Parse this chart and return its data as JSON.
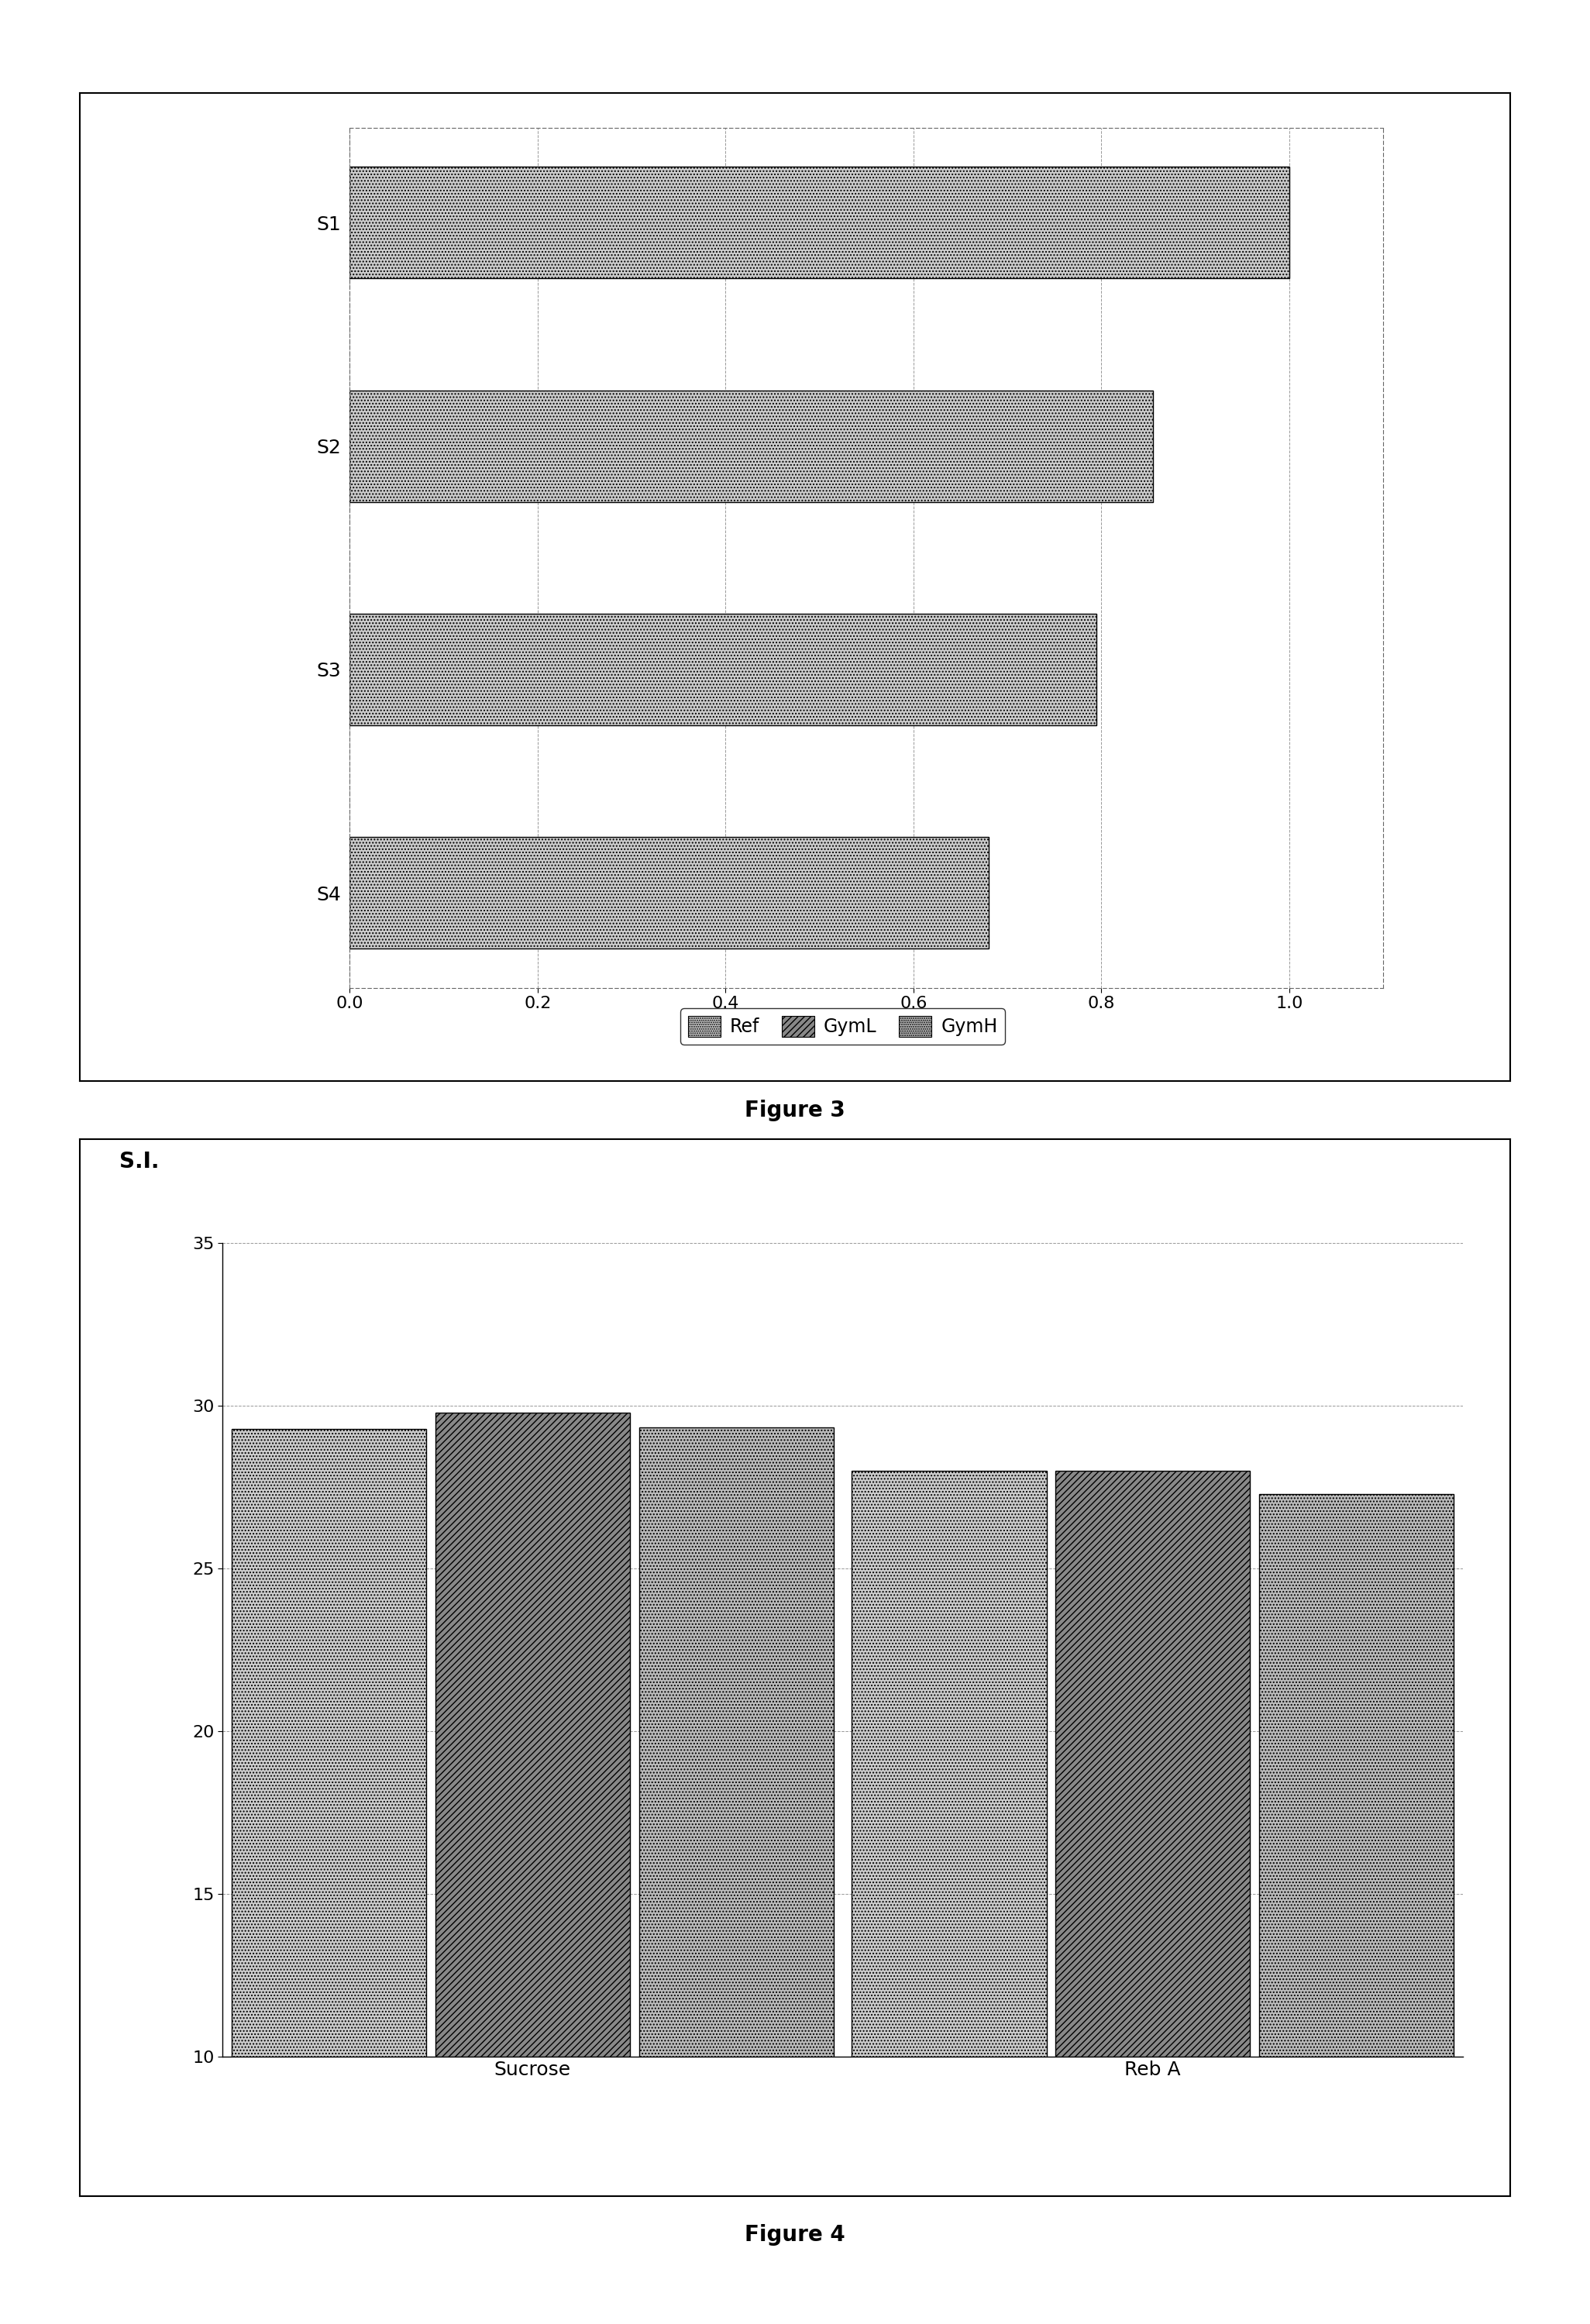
{
  "fig3": {
    "categories": [
      "S4",
      "S3",
      "S2",
      "S1"
    ],
    "values": [
      0.68,
      0.795,
      0.855,
      1.0
    ],
    "xlim": [
      0.0,
      1.1
    ],
    "xticks": [
      0.0,
      0.2,
      0.4,
      0.6,
      0.8,
      1.0
    ],
    "xticklabels": [
      "0.0",
      "0.2",
      "0.4",
      "0.6",
      "0.8",
      "1.0"
    ],
    "bar_color": "#cccccc",
    "bar_hatch": "....",
    "bar_height": 0.5,
    "caption": "Figure 3"
  },
  "fig4": {
    "groups": [
      "Sucrose",
      "Reb A"
    ],
    "series": [
      "Ref",
      "GymL",
      "GymH"
    ],
    "values_sucrose": [
      29.3,
      29.8,
      29.35
    ],
    "values_reba": [
      28.0,
      28.0,
      27.3
    ],
    "ylim": [
      10,
      35
    ],
    "yticks": [
      10,
      15,
      20,
      25,
      30,
      35
    ],
    "ylabel": "S.I.",
    "hatches": [
      "....",
      "////",
      "...."
    ],
    "colors": [
      "#cccccc",
      "#888888",
      "#bbbbbb"
    ],
    "bar_width": 0.22,
    "caption": "Figure 4"
  },
  "background_color": "#ffffff"
}
